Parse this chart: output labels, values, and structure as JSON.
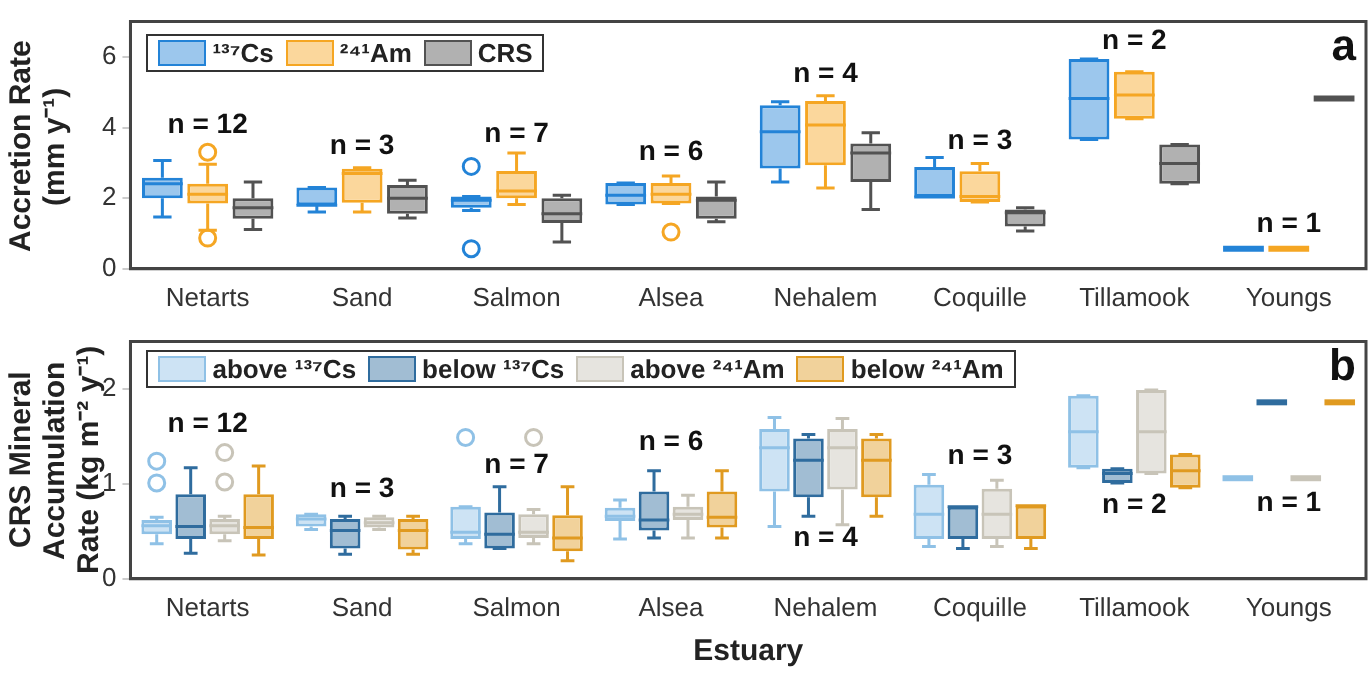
{
  "chart_data": [
    {
      "type": "box",
      "ylabel": "Accretion Rate (mm y⁻¹)",
      "categories": [
        "Netarts",
        "Sand",
        "Salmon",
        "Alsea",
        "Nehalem",
        "Coquille",
        "Tillamook",
        "Youngs"
      ],
      "ylim": [
        0,
        7
      ],
      "yticks": [
        0,
        2,
        4,
        6
      ],
      "legend": "top left",
      "series": [
        {
          "name": "¹³⁷Cs",
          "color": "#2383d7",
          "boxes": [
            {
              "low": 1.47,
              "q1": 2.0,
              "median": 2.41,
              "q3": 2.58,
              "high": 3.07
            },
            {
              "low": 1.61,
              "q1": 1.8,
              "median": 1.8,
              "q3": 2.3,
              "high": 2.3
            },
            {
              "low": 1.65,
              "q1": 1.73,
              "median": 1.94,
              "q3": 2.05,
              "high": 2.05,
              "outliers": [
                2.9,
                0.57
              ]
            },
            {
              "low": 1.82,
              "q1": 1.82,
              "median": 2.08,
              "q3": 2.43,
              "high": 2.43
            },
            {
              "low": 2.46,
              "q1": 2.84,
              "median": 3.88,
              "q3": 4.63,
              "high": 4.73
            },
            {
              "low": 2.03,
              "q1": 2.03,
              "median": 2.03,
              "q3": 2.88,
              "high": 3.15
            },
            {
              "low": 3.66,
              "q1": 3.66,
              "median": 4.82,
              "q3": 5.94,
              "high": 5.94
            },
            {
              "low": 0.57,
              "q1": 0.57,
              "median": 0.57,
              "q3": 0.57,
              "high": 0.57
            }
          ]
        },
        {
          "name": "²⁴¹Am",
          "color": "#f5a623",
          "boxes": [
            {
              "low": 1.09,
              "q1": 1.85,
              "median": 2.11,
              "q3": 2.41,
              "high": 2.96,
              "outliers": [
                3.3,
                0.87
              ]
            },
            {
              "low": 1.61,
              "q1": 1.87,
              "median": 2.7,
              "q3": 2.83,
              "high": 2.86
            },
            {
              "low": 1.82,
              "q1": 2.0,
              "median": 2.2,
              "q3": 2.77,
              "high": 3.28
            },
            {
              "low": 1.85,
              "q1": 1.85,
              "median": 2.11,
              "q3": 2.43,
              "high": 2.63,
              "outliers": [
                1.04
              ]
            },
            {
              "low": 2.29,
              "q1": 2.93,
              "median": 4.07,
              "q3": 4.75,
              "high": 4.9
            },
            {
              "low": 1.89,
              "q1": 1.89,
              "median": 2.05,
              "q3": 2.76,
              "high": 2.98
            },
            {
              "low": 4.25,
              "q1": 4.25,
              "median": 4.92,
              "q3": 5.58,
              "high": 5.58
            },
            {
              "low": 0.57,
              "q1": 0.57,
              "median": 0.57,
              "q3": 0.57,
              "high": 0.57
            }
          ]
        },
        {
          "name": "CRS",
          "color": "#525252",
          "boxes": [
            {
              "low": 1.11,
              "q1": 1.42,
              "median": 1.73,
              "q3": 2.0,
              "high": 2.46
            },
            {
              "low": 1.44,
              "q1": 1.56,
              "median": 2.0,
              "q3": 2.37,
              "high": 2.51
            },
            {
              "low": 0.76,
              "q1": 1.3,
              "median": 1.56,
              "q3": 2.0,
              "high": 2.08
            },
            {
              "low": 1.33,
              "q1": 1.42,
              "median": 1.94,
              "q3": 2.05,
              "high": 2.46
            },
            {
              "low": 1.68,
              "q1": 2.46,
              "median": 3.28,
              "q3": 3.55,
              "high": 3.85
            },
            {
              "low": 1.07,
              "q1": 1.2,
              "median": 1.59,
              "q3": 1.68,
              "high": 1.73
            },
            {
              "low": 2.41,
              "q1": 2.41,
              "median": 2.98,
              "q3": 3.52,
              "high": 3.52
            },
            {
              "low": 4.82,
              "q1": 4.82,
              "median": 4.82,
              "q3": 4.82,
              "high": 4.82
            }
          ]
        }
      ],
      "annotations": [
        "a",
        "n = 12",
        "n = 3",
        "n = 7",
        "n = 6",
        "n = 4",
        "n = 3",
        "n = 2",
        "n = 1"
      ]
    },
    {
      "type": "box",
      "ylabel": "CRS Mineral Accumulation Rate (kg m⁻² y⁻¹)",
      "xlabel": "Estuary",
      "categories": [
        "Netarts",
        "Sand",
        "Salmon",
        "Alsea",
        "Nehalem",
        "Coquille",
        "Tillamook",
        "Youngs"
      ],
      "ylim": [
        0,
        2.5
      ],
      "yticks": [
        0,
        1,
        2
      ],
      "legend": "top left",
      "series": [
        {
          "name": "above ¹³⁷Cs",
          "color": "#8fc1e6",
          "boxes": [
            {
              "low": 0.37,
              "q1": 0.47,
              "median": 0.56,
              "q3": 0.62,
              "high": 0.65,
              "outliers": [
                1.24,
                1.01
              ]
            },
            {
              "low": 0.52,
              "q1": 0.55,
              "median": 0.63,
              "q3": 0.68,
              "high": 0.68
            },
            {
              "low": 0.37,
              "q1": 0.42,
              "median": 0.49,
              "q3": 0.76,
              "high": 0.76,
              "outliers": [
                1.49
              ]
            },
            {
              "low": 0.42,
              "q1": 0.61,
              "median": 0.66,
              "q3": 0.75,
              "high": 0.83
            },
            {
              "low": 0.55,
              "q1": 0.92,
              "median": 1.38,
              "q3": 1.58,
              "high": 1.7
            },
            {
              "low": 0.34,
              "q1": 0.42,
              "median": 0.68,
              "q3": 0.99,
              "high": 1.1
            },
            {
              "low": 1.17,
              "q1": 1.17,
              "median": 1.55,
              "q3": 1.93,
              "high": 1.93
            },
            {
              "low": 1.06,
              "q1": 1.06,
              "median": 1.06,
              "q3": 1.06,
              "high": 1.06
            }
          ]
        },
        {
          "name": "below ¹³⁷Cs",
          "color": "#2f6c9e",
          "boxes": [
            {
              "low": 0.27,
              "q1": 0.42,
              "median": 0.55,
              "q3": 0.89,
              "high": 1.17
            },
            {
              "low": 0.26,
              "q1": 0.32,
              "median": 0.51,
              "q3": 0.63,
              "high": 0.66
            },
            {
              "low": 0.32,
              "q1": 0.32,
              "median": 0.47,
              "q3": 0.7,
              "high": 0.97
            },
            {
              "low": 0.43,
              "q1": 0.51,
              "median": 0.62,
              "q3": 0.92,
              "high": 1.14
            },
            {
              "low": 0.66,
              "q1": 0.86,
              "median": 1.25,
              "q3": 1.48,
              "high": 1.52
            },
            {
              "low": 0.32,
              "q1": 0.42,
              "median": 0.76,
              "q3": 0.76,
              "high": 0.76
            },
            {
              "low": 1.01,
              "q1": 1.01,
              "median": 1.11,
              "q3": 1.16,
              "high": 1.16
            },
            {
              "low": 1.86,
              "q1": 1.86,
              "median": 1.86,
              "q3": 1.86,
              "high": 1.86
            }
          ]
        },
        {
          "name": "above ²⁴¹Am",
          "color": "#c8c4b8",
          "boxes": [
            {
              "low": 0.4,
              "q1": 0.47,
              "median": 0.56,
              "q3": 0.63,
              "high": 0.66,
              "outliers": [
                1.33,
                1.02
              ]
            },
            {
              "low": 0.52,
              "q1": 0.54,
              "median": 0.59,
              "q3": 0.65,
              "high": 0.66
            },
            {
              "low": 0.37,
              "q1": 0.43,
              "median": 0.49,
              "q3": 0.68,
              "high": 0.73,
              "outliers": [
                1.49
              ]
            },
            {
              "low": 0.43,
              "q1": 0.62,
              "median": 0.68,
              "q3": 0.76,
              "high": 0.88
            },
            {
              "low": 0.57,
              "q1": 0.94,
              "median": 1.38,
              "q3": 1.58,
              "high": 1.69
            },
            {
              "low": 0.34,
              "q1": 0.42,
              "median": 0.68,
              "q3": 0.95,
              "high": 1.04
            },
            {
              "low": 1.11,
              "q1": 1.11,
              "median": 1.55,
              "q3": 1.99,
              "high": 1.99
            },
            {
              "low": 1.06,
              "q1": 1.06,
              "median": 1.06,
              "q3": 1.06,
              "high": 1.06
            }
          ]
        },
        {
          "name": "below ²⁴¹Am",
          "color": "#e09a20",
          "boxes": [
            {
              "low": 0.25,
              "q1": 0.42,
              "median": 0.54,
              "q3": 0.89,
              "high": 1.19
            },
            {
              "low": 0.26,
              "q1": 0.31,
              "median": 0.51,
              "q3": 0.63,
              "high": 0.66
            },
            {
              "low": 0.19,
              "q1": 0.29,
              "median": 0.43,
              "q3": 0.67,
              "high": 0.97
            },
            {
              "low": 0.43,
              "q1": 0.54,
              "median": 0.65,
              "q3": 0.92,
              "high": 1.14
            },
            {
              "low": 0.66,
              "q1": 0.86,
              "median": 1.25,
              "q3": 1.48,
              "high": 1.52
            },
            {
              "low": 0.32,
              "q1": 0.42,
              "median": 0.77,
              "q3": 0.77,
              "high": 0.77
            },
            {
              "low": 0.96,
              "q1": 0.96,
              "median": 1.14,
              "q3": 1.31,
              "high": 1.31
            },
            {
              "low": 1.86,
              "q1": 1.86,
              "median": 1.86,
              "q3": 1.86,
              "high": 1.86
            }
          ]
        }
      ],
      "annotations": [
        "b",
        "n = 12",
        "n = 3",
        "n = 7",
        "n = 6",
        "n = 4",
        "n = 3",
        "n = 2",
        "n = 1"
      ]
    }
  ]
}
